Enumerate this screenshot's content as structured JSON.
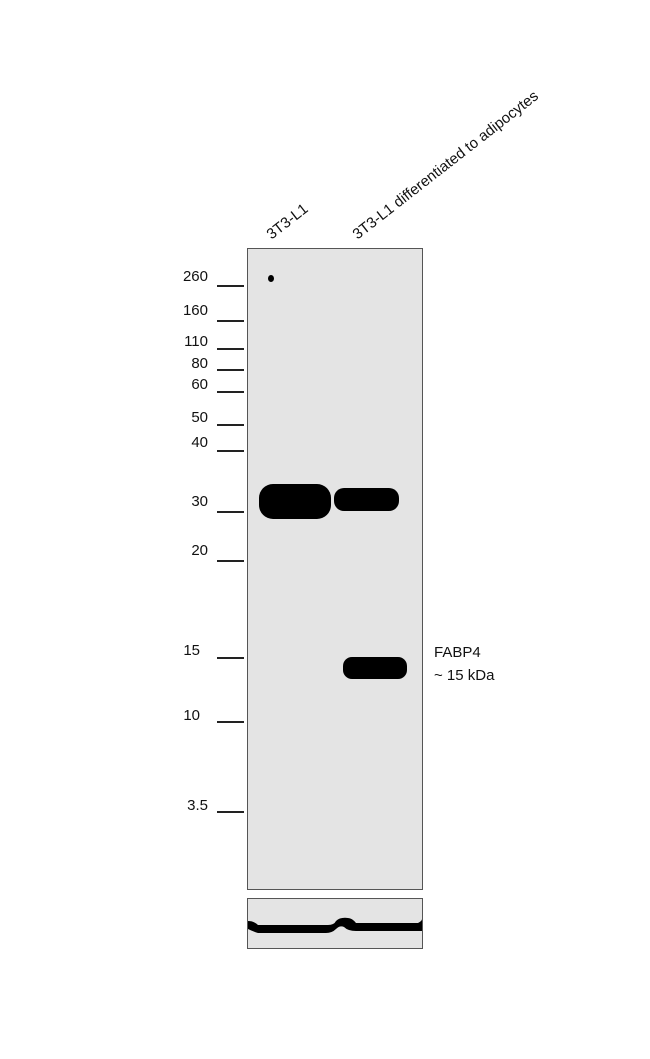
{
  "lanes": [
    {
      "label": "3T3-L1"
    },
    {
      "label": "3T3-L1 differentiated to adipocytes"
    }
  ],
  "markers_kda": [
    "260",
    "160",
    "110",
    "80",
    "60",
    "50",
    "40",
    "30",
    "20",
    "15",
    "10",
    "3.5"
  ],
  "annotation": {
    "target": "FABP4",
    "size": "~ 15 kDa"
  },
  "colors": {
    "membrane": "#e4e4e4",
    "band": "#000000"
  }
}
